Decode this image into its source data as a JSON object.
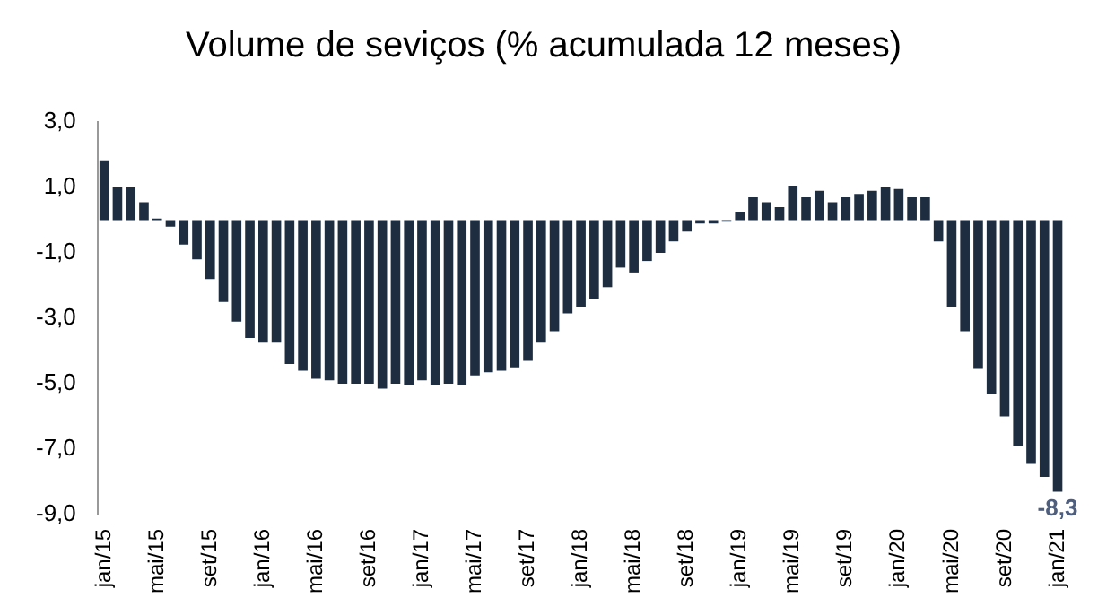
{
  "chart_data": {
    "type": "bar",
    "title": "Volume de seviços (% acumulada 12 meses)",
    "categories": [
      "jan/15",
      null,
      null,
      null,
      "mai/15",
      null,
      null,
      null,
      "set/15",
      null,
      null,
      null,
      "jan/16",
      null,
      null,
      null,
      "mai/16",
      null,
      null,
      null,
      "set/16",
      null,
      null,
      null,
      "jan/17",
      null,
      null,
      null,
      "mai/17",
      null,
      null,
      null,
      "set/17",
      null,
      null,
      null,
      "jan/18",
      null,
      null,
      null,
      "mai/18",
      null,
      null,
      null,
      "set/18",
      null,
      null,
      null,
      "jan/19",
      null,
      null,
      null,
      "mai/19",
      null,
      null,
      null,
      "set/19",
      null,
      null,
      null,
      "jan/20",
      null,
      null,
      null,
      "mai/20",
      null,
      null,
      null,
      "set/20",
      null,
      null,
      null,
      "jan/21"
    ],
    "values": [
      1.8,
      1.0,
      1.0,
      0.55,
      0.05,
      -0.2,
      -0.75,
      -1.2,
      -1.8,
      -2.5,
      -3.1,
      -3.6,
      -3.75,
      -3.75,
      -4.4,
      -4.6,
      -4.85,
      -4.9,
      -5.0,
      -5.0,
      -5.0,
      -5.15,
      -5.0,
      -5.05,
      -4.9,
      -5.05,
      -5.0,
      -5.05,
      -4.75,
      -4.65,
      -4.6,
      -4.5,
      -4.3,
      -3.75,
      -3.4,
      -2.85,
      -2.65,
      -2.4,
      -2.05,
      -1.45,
      -1.6,
      -1.25,
      -1.0,
      -0.65,
      -0.35,
      -0.1,
      -0.1,
      -0.05,
      0.25,
      0.7,
      0.55,
      0.4,
      1.05,
      0.7,
      0.9,
      0.55,
      0.7,
      0.8,
      0.9,
      1.0,
      0.95,
      0.7,
      0.7,
      -0.65,
      -2.65,
      -3.4,
      -4.55,
      -5.3,
      -6.0,
      -6.9,
      -7.45,
      -7.85,
      -8.3
    ],
    "value_labels": [
      null,
      null,
      null,
      null,
      null,
      null,
      null,
      null,
      null,
      null,
      null,
      null,
      null,
      null,
      null,
      null,
      null,
      null,
      null,
      null,
      null,
      null,
      null,
      null,
      null,
      null,
      null,
      null,
      null,
      null,
      null,
      null,
      null,
      null,
      null,
      null,
      null,
      null,
      null,
      null,
      null,
      null,
      null,
      null,
      null,
      null,
      null,
      null,
      null,
      null,
      null,
      null,
      null,
      null,
      null,
      null,
      null,
      null,
      null,
      null,
      null,
      null,
      null,
      null,
      null,
      null,
      null,
      null,
      null,
      null,
      null,
      null,
      "-8,3"
    ],
    "color": "#1e2d40",
    "ylim": [
      -9,
      3
    ],
    "yticks": [
      {
        "value": 3,
        "label": "3,0"
      },
      {
        "value": 1,
        "label": "1,0"
      },
      {
        "value": -1,
        "label": "-1,0"
      },
      {
        "value": -3,
        "label": "-3,0"
      },
      {
        "value": -5,
        "label": "-5,0"
      },
      {
        "value": -7,
        "label": "-7,0"
      },
      {
        "value": -9,
        "label": "-9,0"
      }
    ],
    "grid": false,
    "legend": false
  }
}
